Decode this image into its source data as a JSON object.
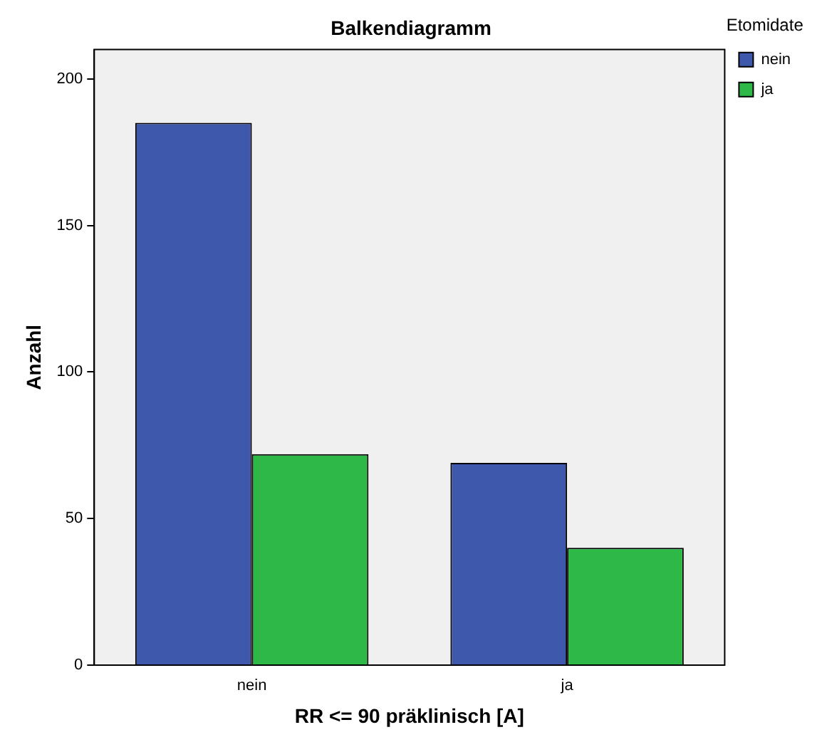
{
  "chart_data": {
    "type": "bar",
    "title": "Balkendiagramm",
    "xlabel": "RR <= 90 präklinisch [A]",
    "ylabel": "Anzahl",
    "legend_title": "Etomidate",
    "categories": [
      "nein",
      "ja"
    ],
    "series": [
      {
        "name": "nein",
        "color": "#3e58ac",
        "values": [
          185,
          69
        ]
      },
      {
        "name": "ja",
        "color": "#2eb848",
        "values": [
          72,
          40
        ]
      }
    ],
    "ylim": [
      0,
      210
    ],
    "yticks": [
      0,
      50,
      100,
      150,
      200
    ],
    "grid": false,
    "legend": "top right"
  }
}
